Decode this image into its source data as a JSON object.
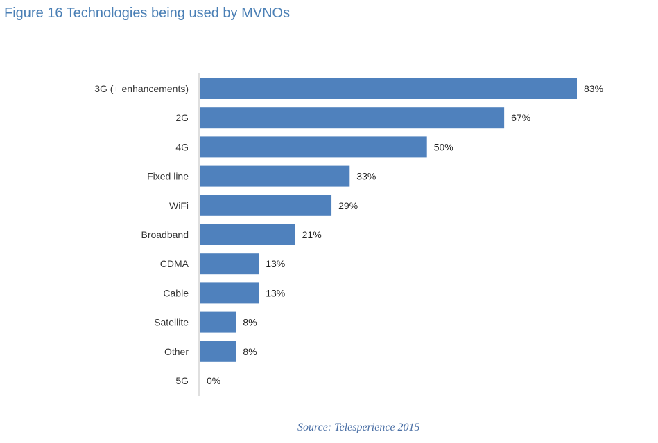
{
  "figure": {
    "title": "Figure 16 Technologies being used by MVNOs",
    "source": "Source: Telesperience 2015"
  },
  "colors": {
    "bar": "#4f81bd",
    "title": "#4a7fb5",
    "axis": "#bfbfbf"
  },
  "chart_data": {
    "type": "bar",
    "orientation": "horizontal",
    "title": "Figure 16 Technologies being used by MVNOs",
    "categories": [
      "3G (+ enhancements)",
      "2G",
      "4G",
      "Fixed line",
      "WiFi",
      "Broadband",
      "CDMA",
      "Cable",
      "Satellite",
      "Other",
      "5G"
    ],
    "values": [
      83,
      67,
      50,
      33,
      29,
      21,
      13,
      13,
      8,
      8,
      0
    ],
    "value_labels": [
      "83%",
      "67%",
      "50%",
      "33%",
      "29%",
      "21%",
      "13%",
      "13%",
      "8%",
      "8%",
      "0%"
    ],
    "unit": "%",
    "xlim": [
      0,
      83
    ],
    "grid": false,
    "legend": "none"
  }
}
